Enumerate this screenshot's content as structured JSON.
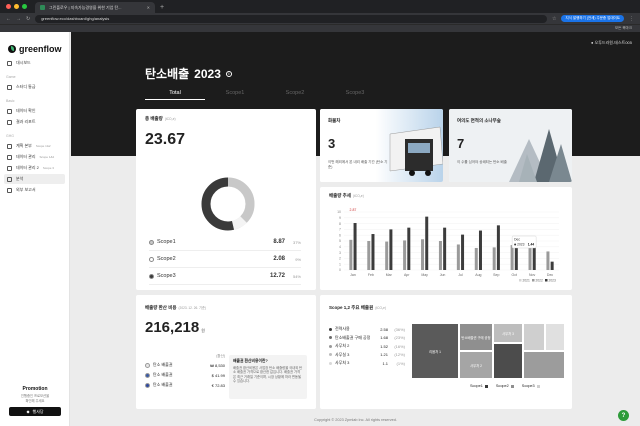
{
  "browser": {
    "tab_title": "그린플로우 | 지속가능경영을 위한 기업 탄...",
    "url": "greenflow.eco/dashboard/ghg/analysis",
    "translate_pill": "지식 발행하기 (전세) 주문중 업데이트",
    "bookmark_label": "모든 북마크"
  },
  "brand": {
    "name": "greenflow"
  },
  "sidebar": {
    "groups": [
      {
        "caption": "",
        "items": [
          {
            "label": "대시보드",
            "icon": "home-icon"
          }
        ]
      },
      {
        "caption": "Game",
        "items": [
          {
            "label": "스터디 통금",
            "icon": "study-icon"
          }
        ]
      },
      {
        "caption": "Basic",
        "items": [
          {
            "label": "데이터 확인",
            "icon": "data-icon"
          },
          {
            "label": "결과 리포트",
            "icon": "report-icon"
          }
        ]
      },
      {
        "caption": "GHG",
        "items": [
          {
            "label": "계획 본부",
            "sub": "Scope 1&2",
            "icon": "plan-icon"
          },
          {
            "label": "데이터 관리",
            "sub": "Scope 1&2",
            "icon": "db-icon"
          },
          {
            "label": "데이터 관리 2",
            "sub": "Scope 3",
            "icon": "db-icon"
          },
          {
            "label": "분석",
            "icon": "analysis-icon",
            "active": true
          },
          {
            "label": "외부 보고서",
            "icon": "doc-icon"
          }
        ]
      }
    ],
    "promo": {
      "title": "Promotion",
      "subtitle": "진행중인 프로모션을\n확인해 주세요",
      "button": "행사당"
    }
  },
  "header": {
    "user": "오투드라원-테스트005",
    "title": "탄소배출",
    "year": "2023",
    "tabs": [
      "Total",
      "Scope1",
      "Scope2",
      "Scope3"
    ]
  },
  "total_card": {
    "title": "총 배출량",
    "unit": "(tCO₂e)",
    "value": "23.67",
    "scopes": [
      {
        "name": "Scope1",
        "value": "8.87",
        "pct": "37%",
        "color": "#c8c8c8"
      },
      {
        "name": "Scope2",
        "value": "2.08",
        "pct": "9%",
        "color": "#ffffff"
      },
      {
        "name": "Scope3",
        "value": "12.72",
        "pct": "54%",
        "color": "#3a3a3a"
      }
    ]
  },
  "img_cards": [
    {
      "title": "화물차",
      "value": "3",
      "desc": "이번 해외에서 본 내리 배출 기간 (탄소 기준)"
    },
    {
      "title": "여의도 면적의 소나무숲",
      "value": "7",
      "desc": "이 수를 심어야 상쇄되는 탄소 배출"
    }
  ],
  "trend_card": {
    "title": "배출량 추세",
    "unit": "(tCO₂e)",
    "tooltip": {
      "month": "Dec",
      "label": "2023",
      "value": "1.44"
    },
    "legend": [
      "2021",
      "2022",
      "2023"
    ]
  },
  "conversion_card": {
    "title": "배출량 환산 비용",
    "note": "(2023. 12. 26. 기준)",
    "value": "216,218",
    "unit": "원",
    "header_label": "(환산)",
    "rows": [
      {
        "label": "탄소 배출권",
        "value": "₩ 8,530",
        "icon": "kr-flag-icon"
      },
      {
        "label": "탄소 배출권",
        "value": "$ 41.99",
        "icon": "us-flag-icon"
      },
      {
        "label": "탄소 배출권",
        "value": "€ 72.83",
        "icon": "eu-flag-icon"
      }
    ],
    "info_title": "배출권 환산비용이란?",
    "info_text": "배출권 환산비용은 사업장 탄소 배출량을 국내외 탄소 배출권 가격으로 환산한 값입니다. 배출권 가격은 최근 거래일 기준이며, 시장 상황에 따라 변동될 수 있습니다."
  },
  "treemap_card": {
    "title": "Scope 1,2 주요 배출원",
    "unit": "(tCO₂e)",
    "rows": [
      {
        "label": "전력사용",
        "value": "2.58",
        "pct": "(36%)"
      },
      {
        "label": "탄소배출권 구매 공정",
        "value": "1.68",
        "pct": "(23%)"
      },
      {
        "label": "사무처 2",
        "value": "1.52",
        "pct": "(16%)"
      },
      {
        "label": "사무실 3",
        "value": "1.21",
        "pct": "(12%)"
      },
      {
        "label": "사무처 3",
        "value": "1.1",
        "pct": "(1%)"
      }
    ],
    "blocks": [
      {
        "label": "리움처 1"
      },
      {
        "label": "탄소배출권 구매 공정"
      },
      {
        "label": "사무처 2"
      },
      {
        "label": "사무처 3"
      },
      {
        "label": ""
      },
      {
        "label": ""
      },
      {
        "label": ""
      },
      {
        "label": ""
      }
    ],
    "legend": [
      "Scope1",
      "Scope2",
      "Scope3"
    ]
  },
  "chart_data": {
    "type": "bar",
    "title": "배출량 추세",
    "ylabel": "",
    "categories": [
      "Jan",
      "Feb",
      "Mar",
      "Apr",
      "May",
      "Jun",
      "Jul",
      "Aug",
      "Sep",
      "Oct",
      "Nov",
      "Dec"
    ],
    "yticks": [
      "10",
      "9",
      "8",
      "7",
      "6",
      "5",
      "4",
      "3",
      "2",
      "1",
      "0"
    ],
    "ylim": [
      0,
      10
    ],
    "series": [
      {
        "name": "2021",
        "color": "#d6d6d6",
        "values": [
          0,
          0,
          0,
          0,
          0,
          0,
          0,
          0,
          0,
          0,
          0,
          0
        ]
      },
      {
        "name": "2022",
        "color": "#9a9a9a",
        "values": [
          5.2,
          5.0,
          4.9,
          5.1,
          5.3,
          5.0,
          4.4,
          3.8,
          3.9,
          4.3,
          3.9,
          3.2
        ]
      },
      {
        "name": "2023",
        "color": "#3c3c3c",
        "values": [
          8.1,
          6.2,
          7.0,
          7.3,
          9.2,
          7.3,
          6.1,
          6.8,
          7.7,
          4.0,
          4.4,
          1.44
        ]
      }
    ],
    "annotation": "2.87",
    "grid": true
  },
  "footer": {
    "text": "Copyright © 2023 Zpmlab Inc. All rights reserved."
  }
}
